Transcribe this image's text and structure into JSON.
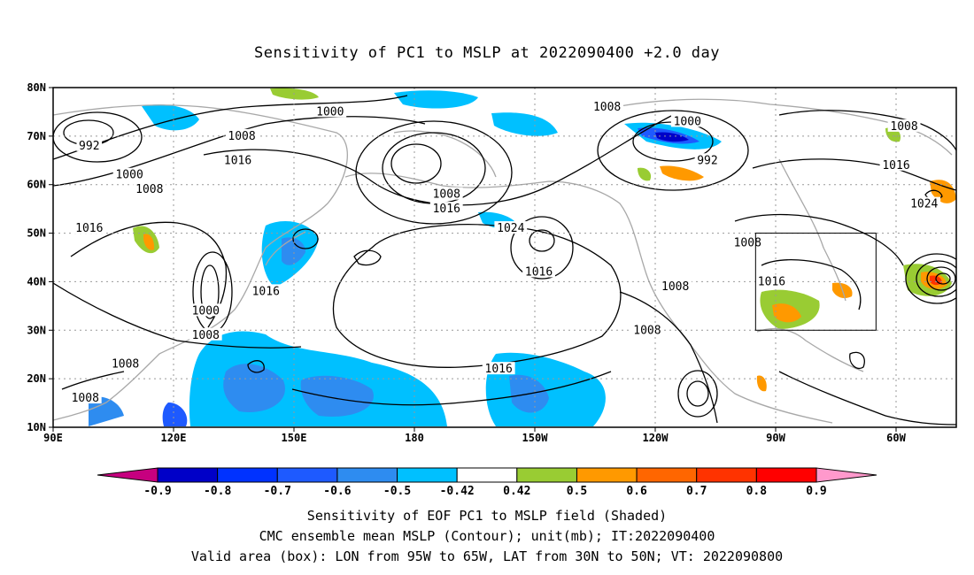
{
  "title": "Sensitivity of PC1 to MSLP at 2022090400 +2.0 day",
  "map": {
    "lon_labels": [
      "90E",
      "120E",
      "150E",
      "180",
      "150W",
      "120W",
      "90W",
      "60W"
    ],
    "lat_labels": [
      "80N",
      "70N",
      "60N",
      "50N",
      "40N",
      "30N",
      "20N",
      "10N"
    ],
    "lon_range_deg_east": [
      90,
      315
    ],
    "lat_range_deg_north": [
      10,
      80
    ],
    "contour_labels": [
      {
        "text": "1000",
        "lon": 159,
        "lat": 75
      },
      {
        "text": "1008",
        "lon": 228,
        "lat": 76
      },
      {
        "text": "1008",
        "lon": 137,
        "lat": 70
      },
      {
        "text": "992",
        "lon": 99,
        "lat": 68
      },
      {
        "text": "1016",
        "lon": 136,
        "lat": 65
      },
      {
        "text": "1000",
        "lon": 109,
        "lat": 62
      },
      {
        "text": "1008",
        "lon": 114,
        "lat": 59
      },
      {
        "text": "1008",
        "lon": 188,
        "lat": 58
      },
      {
        "text": "1016",
        "lon": 188,
        "lat": 55
      },
      {
        "text": "1024",
        "lon": 204,
        "lat": 51
      },
      {
        "text": "1016",
        "lon": 99,
        "lat": 51
      },
      {
        "text": "1016",
        "lon": 211,
        "lat": 42
      },
      {
        "text": "1016",
        "lon": 143,
        "lat": 38
      },
      {
        "text": "1000",
        "lon": 128,
        "lat": 34
      },
      {
        "text": "1008",
        "lon": 128,
        "lat": 29
      },
      {
        "text": "1008",
        "lon": 108,
        "lat": 23
      },
      {
        "text": "1008",
        "lon": 98,
        "lat": 16
      },
      {
        "text": "1016",
        "lon": 201,
        "lat": 22
      },
      {
        "text": "1008",
        "lon": 238,
        "lat": 30
      },
      {
        "text": "1008",
        "lon": 245,
        "lat": 39
      },
      {
        "text": "1016",
        "lon": 269,
        "lat": 40
      },
      {
        "text": "1008",
        "lon": 263,
        "lat": 48
      },
      {
        "text": "1000",
        "lon": 248,
        "lat": 73
      },
      {
        "text": "992",
        "lon": 253,
        "lat": 65
      },
      {
        "text": "1008",
        "lon": 302,
        "lat": 72
      },
      {
        "text": "1016",
        "lon": 300,
        "lat": 64
      },
      {
        "text": "1024",
        "lon": 307,
        "lat": 56
      }
    ],
    "valid_box": {
      "lon_west": 265,
      "lon_east": 295,
      "lat_south": 30,
      "lat_north": 50
    }
  },
  "colorbar": {
    "labels": [
      "-0.9",
      "-0.8",
      "-0.7",
      "-0.6",
      "-0.5",
      "-0.42",
      "0.42",
      "0.5",
      "0.6",
      "0.7",
      "0.8",
      "0.9"
    ],
    "colors": [
      "#c6007f",
      "#0000c8",
      "#0032ff",
      "#1e5aff",
      "#2e8cf0",
      "#00c0ff",
      "#ffffff",
      "#99cc33",
      "#ff9900",
      "#ff6600",
      "#ff3300",
      "#ff0000",
      "#ff99cc"
    ]
  },
  "captions": {
    "line1": "Sensitivity of EOF PC1 to MSLP field (Shaded)",
    "line2": "CMC ensemble mean MSLP (Contour); unit(mb); IT:2022090400",
    "line3": "Valid area (box): LON from 95W to 65W, LAT from 30N to 50N; VT: 2022090800"
  }
}
